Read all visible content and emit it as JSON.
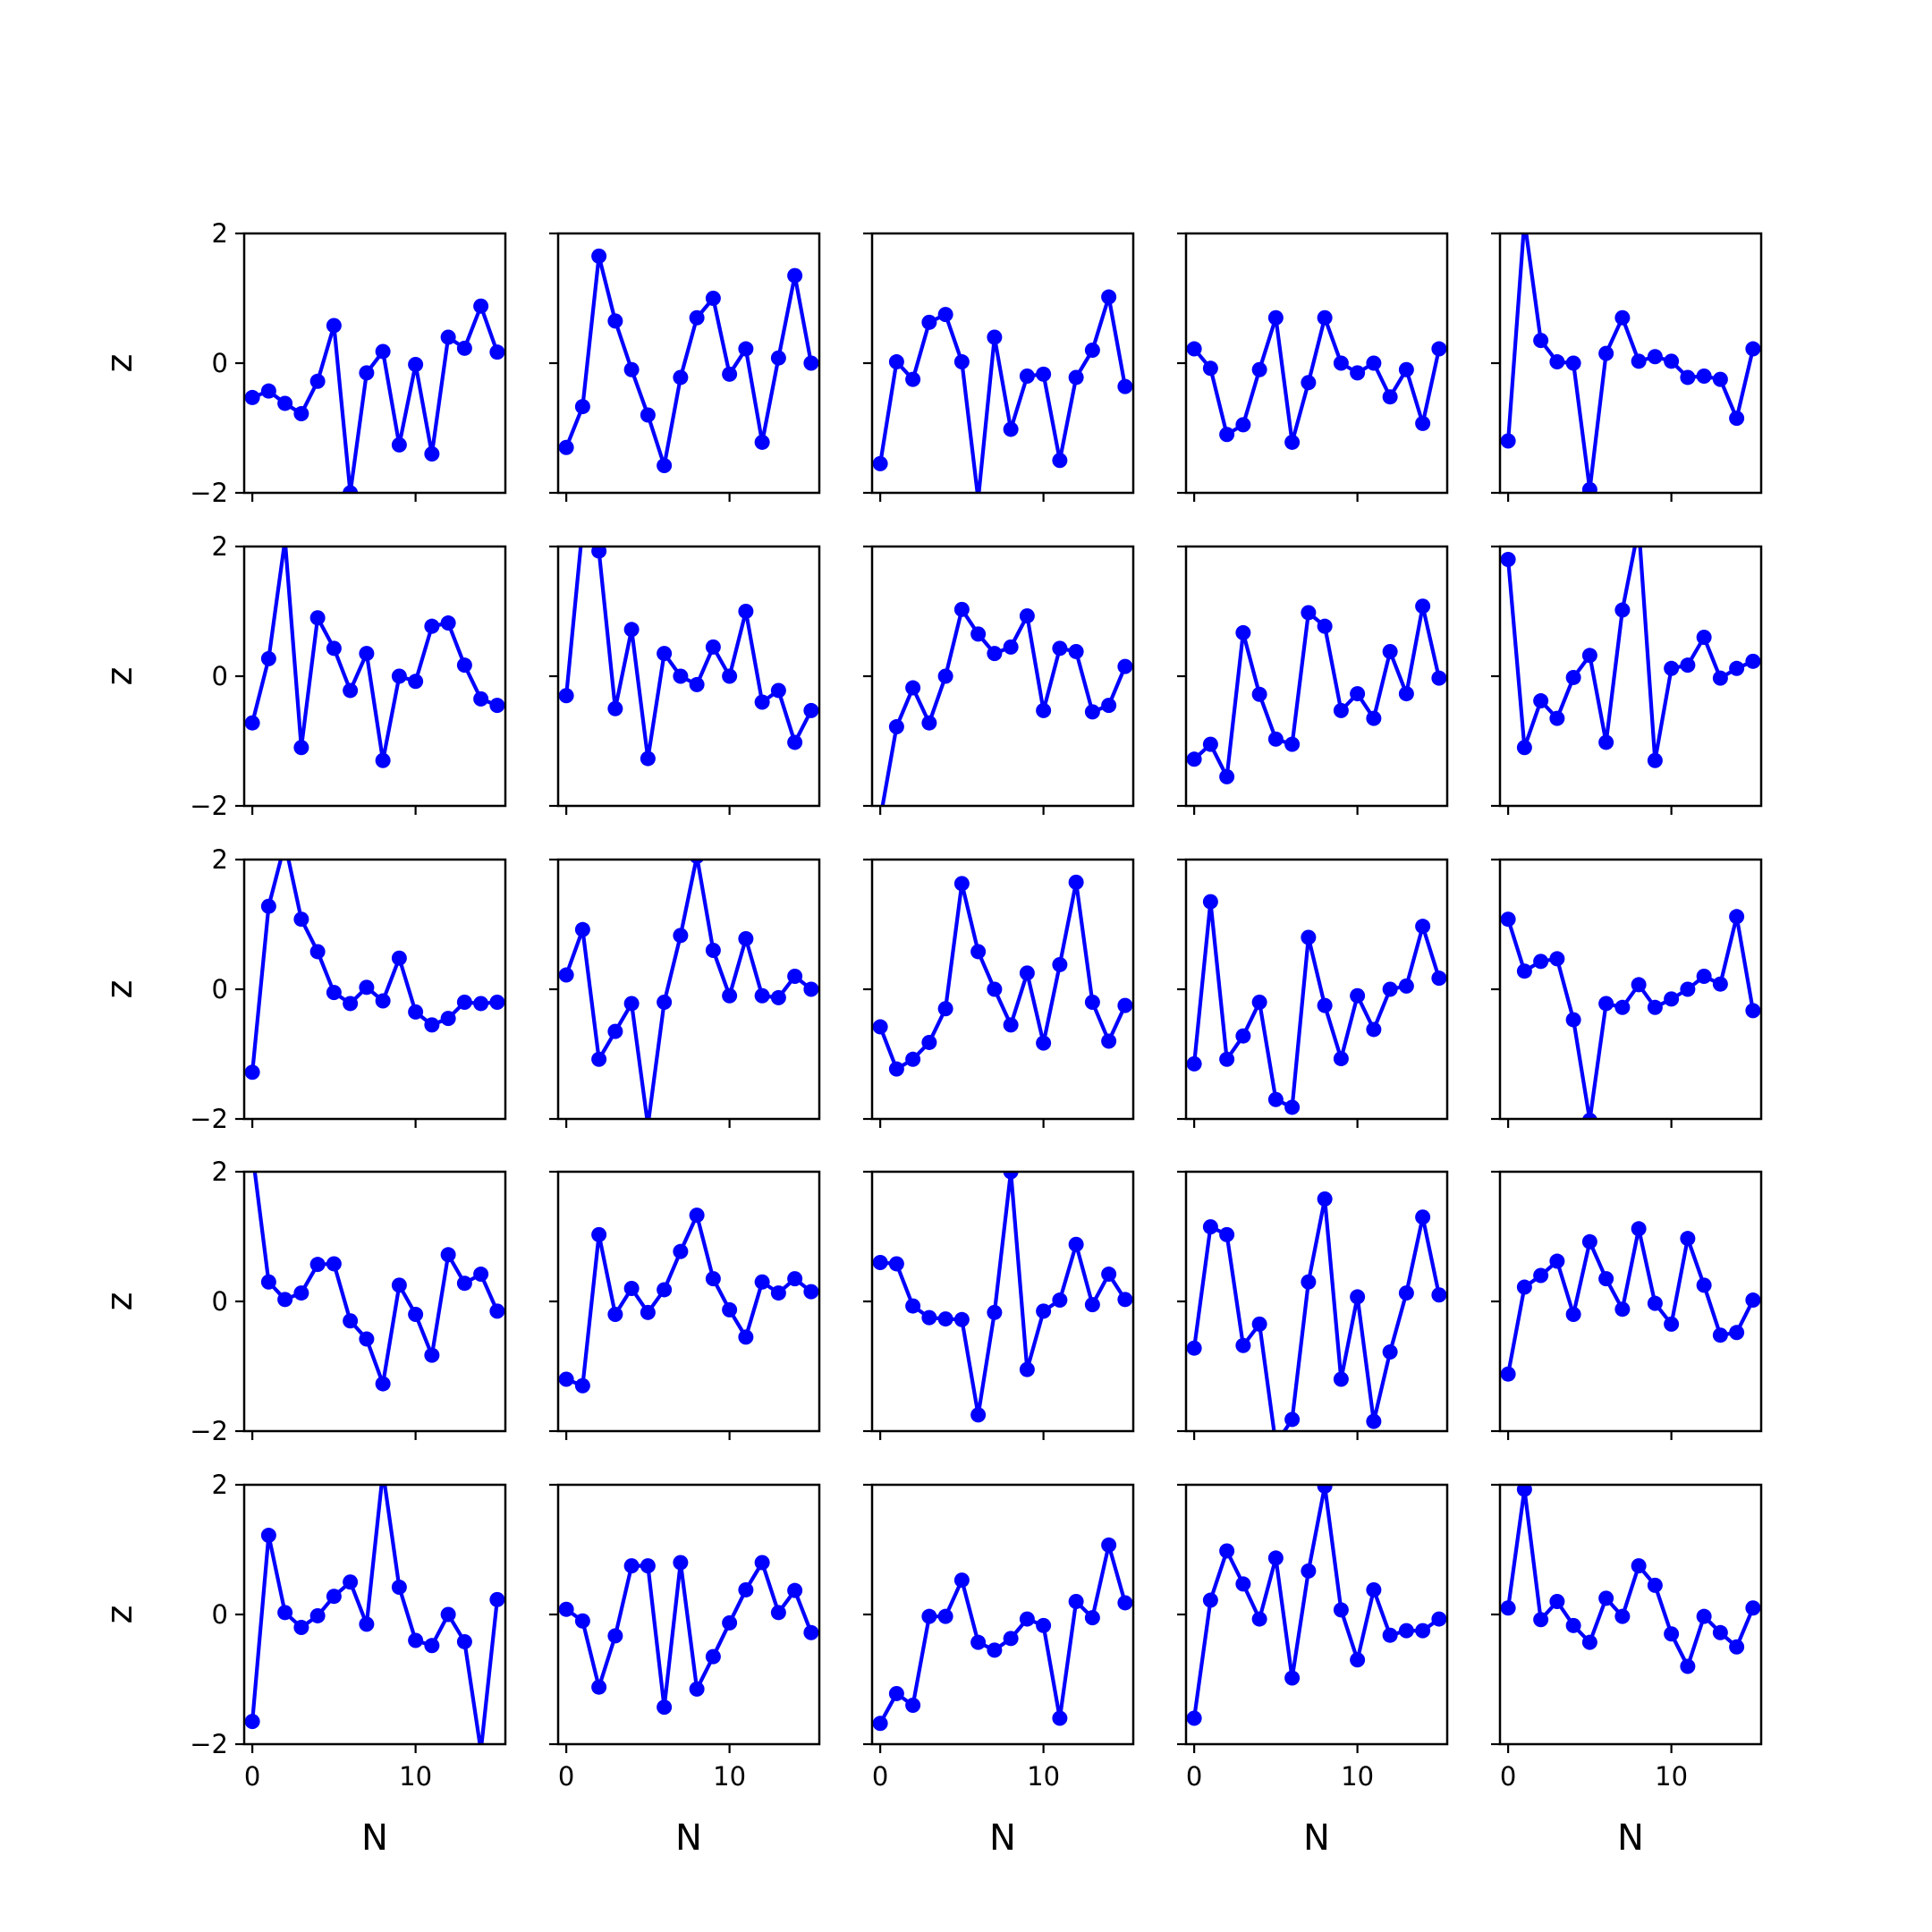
{
  "chart_data": {
    "type": "line",
    "layout": "5x5 small multiples, shared axes",
    "xlabel": "N",
    "ylabel": "z",
    "xlim": [
      -0.5,
      15.5
    ],
    "ylim": [
      -2,
      2
    ],
    "xticks": [
      0,
      10
    ],
    "yticks": [
      -2,
      0,
      2
    ],
    "x_tick_labels": [
      "0",
      "10"
    ],
    "y_tick_labels": [
      "−2",
      "0",
      "2"
    ],
    "grid": false,
    "line_color": "#0000ff",
    "marker": "circle",
    "x": [
      0,
      1,
      2,
      3,
      4,
      5,
      6,
      7,
      8,
      9,
      10,
      11,
      12,
      13,
      14,
      15
    ],
    "panels": [
      {
        "row": 1,
        "col": 1,
        "values": [
          -0.53,
          -0.43,
          -0.62,
          -0.78,
          -0.28,
          0.58,
          -2.0,
          -0.15,
          0.18,
          -1.26,
          -0.02,
          -1.4,
          0.4,
          0.23,
          0.88,
          0.17
        ]
      },
      {
        "row": 1,
        "col": 2,
        "values": [
          -1.3,
          -0.67,
          1.65,
          0.65,
          -0.1,
          -0.8,
          -1.58,
          -0.22,
          0.7,
          1.0,
          -0.17,
          0.22,
          -1.22,
          0.08,
          1.35,
          0.0
        ]
      },
      {
        "row": 1,
        "col": 3,
        "values": [
          -1.55,
          0.02,
          -0.25,
          0.63,
          0.75,
          0.02,
          -2.1,
          0.4,
          -1.02,
          -0.2,
          -0.17,
          -1.5,
          -0.22,
          0.2,
          1.02,
          -0.36
        ]
      },
      {
        "row": 1,
        "col": 4,
        "values": [
          0.22,
          -0.08,
          -1.1,
          -0.95,
          -0.1,
          0.7,
          -1.22,
          -0.3,
          0.7,
          0.0,
          -0.15,
          0.0,
          -0.52,
          -0.1,
          -0.93,
          0.22
        ]
      },
      {
        "row": 1,
        "col": 5,
        "values": [
          -1.2,
          2.2,
          0.35,
          0.02,
          0.0,
          -1.95,
          0.15,
          0.7,
          0.03,
          0.1,
          0.03,
          -0.22,
          -0.2,
          -0.25,
          -0.85,
          0.22
        ]
      },
      {
        "row": 2,
        "col": 1,
        "values": [
          -0.72,
          0.27,
          2.1,
          -1.1,
          0.9,
          0.43,
          -0.22,
          0.35,
          -1.3,
          0.0,
          -0.08,
          0.77,
          0.82,
          0.17,
          -0.35,
          -0.45
        ]
      },
      {
        "row": 2,
        "col": 2,
        "values": [
          -0.3,
          2.3,
          1.93,
          -0.5,
          0.72,
          -1.27,
          0.35,
          0.0,
          -0.13,
          0.45,
          0.0,
          1.0,
          -0.4,
          -0.22,
          -1.02,
          -0.53
        ]
      },
      {
        "row": 2,
        "col": 3,
        "values": [
          -2.2,
          -0.78,
          -0.18,
          -0.72,
          0.0,
          1.03,
          0.65,
          0.35,
          0.45,
          0.93,
          -0.53,
          0.43,
          0.38,
          -0.55,
          -0.45,
          0.15
        ]
      },
      {
        "row": 2,
        "col": 4,
        "values": [
          -1.28,
          -1.05,
          -1.55,
          0.67,
          -0.28,
          -0.97,
          -1.05,
          0.98,
          0.77,
          -0.53,
          -0.27,
          -0.65,
          0.38,
          -0.27,
          1.08,
          -0.03
        ]
      },
      {
        "row": 2,
        "col": 5,
        "values": [
          1.8,
          -1.1,
          -0.38,
          -0.65,
          -0.02,
          0.32,
          -1.02,
          1.02,
          2.3,
          -1.3,
          0.12,
          0.17,
          0.6,
          -0.03,
          0.12,
          0.23
        ]
      },
      {
        "row": 3,
        "col": 1,
        "values": [
          -1.28,
          1.28,
          2.25,
          1.08,
          0.58,
          -0.05,
          -0.22,
          0.03,
          -0.18,
          0.48,
          -0.35,
          -0.55,
          -0.45,
          -0.2,
          -0.22,
          -0.2
        ]
      },
      {
        "row": 3,
        "col": 2,
        "values": [
          0.22,
          0.92,
          -1.08,
          -0.65,
          -0.22,
          -2.1,
          -0.2,
          0.83,
          2.05,
          0.6,
          -0.1,
          0.78,
          -0.1,
          -0.13,
          0.2,
          0.0
        ]
      },
      {
        "row": 3,
        "col": 3,
        "values": [
          -0.58,
          -1.23,
          -1.08,
          -0.82,
          -0.3,
          1.63,
          0.58,
          0.0,
          -0.55,
          0.25,
          -0.83,
          0.38,
          1.65,
          -0.2,
          -0.8,
          -0.25
        ]
      },
      {
        "row": 3,
        "col": 4,
        "values": [
          -1.15,
          1.35,
          -1.08,
          -0.72,
          -0.2,
          -1.7,
          -1.82,
          0.8,
          -0.25,
          -1.07,
          -0.1,
          -0.62,
          0.0,
          0.05,
          0.97,
          0.17
        ]
      },
      {
        "row": 3,
        "col": 5,
        "values": [
          1.08,
          0.28,
          0.43,
          0.47,
          -0.47,
          -2.02,
          -0.22,
          -0.28,
          0.07,
          -0.28,
          -0.15,
          0.0,
          0.2,
          0.08,
          1.12,
          -0.33
        ]
      },
      {
        "row": 4,
        "col": 1,
        "values": [
          2.3,
          0.3,
          0.03,
          0.13,
          0.57,
          0.58,
          -0.3,
          -0.58,
          -1.27,
          0.25,
          -0.2,
          -0.83,
          0.72,
          0.28,
          0.42,
          -0.15
        ]
      },
      {
        "row": 4,
        "col": 2,
        "values": [
          -1.2,
          -1.3,
          1.03,
          -0.2,
          0.2,
          -0.17,
          0.18,
          0.77,
          1.33,
          0.35,
          -0.13,
          -0.55,
          0.3,
          0.13,
          0.35,
          0.15
        ]
      },
      {
        "row": 4,
        "col": 3,
        "values": [
          0.6,
          0.58,
          -0.07,
          -0.25,
          -0.27,
          -0.28,
          -1.75,
          -0.17,
          2.0,
          -1.05,
          -0.15,
          0.02,
          0.88,
          -0.05,
          0.42,
          0.03
        ]
      },
      {
        "row": 4,
        "col": 4,
        "values": [
          -0.72,
          1.15,
          1.03,
          -0.68,
          -0.35,
          -2.2,
          -1.82,
          0.3,
          1.58,
          -1.2,
          0.07,
          -1.85,
          -0.78,
          0.13,
          1.3,
          0.1
        ]
      },
      {
        "row": 4,
        "col": 5,
        "values": [
          -1.12,
          0.22,
          0.4,
          0.62,
          -0.2,
          0.92,
          0.35,
          -0.12,
          1.12,
          -0.03,
          -0.35,
          0.97,
          0.25,
          -0.52,
          -0.48,
          0.02
        ]
      },
      {
        "row": 5,
        "col": 1,
        "values": [
          -1.65,
          1.22,
          0.03,
          -0.2,
          -0.02,
          0.28,
          0.5,
          -0.15,
          2.2,
          0.42,
          -0.4,
          -0.48,
          0.0,
          -0.42,
          -2.1,
          0.23
        ]
      },
      {
        "row": 5,
        "col": 2,
        "values": [
          0.08,
          -0.1,
          -1.12,
          -0.33,
          0.75,
          0.75,
          -1.43,
          0.8,
          -1.15,
          -0.65,
          -0.13,
          0.38,
          0.8,
          0.03,
          0.37,
          -0.28
        ]
      },
      {
        "row": 5,
        "col": 3,
        "values": [
          -1.68,
          -1.22,
          -1.4,
          -0.03,
          -0.03,
          0.53,
          -0.43,
          -0.55,
          -0.37,
          -0.07,
          -0.17,
          -1.6,
          0.2,
          -0.05,
          1.07,
          0.18
        ]
      },
      {
        "row": 5,
        "col": 4,
        "values": [
          -1.6,
          0.22,
          0.98,
          0.47,
          -0.07,
          0.87,
          -0.98,
          0.67,
          1.98,
          0.07,
          -0.7,
          0.38,
          -0.32,
          -0.25,
          -0.25,
          -0.07
        ]
      },
      {
        "row": 5,
        "col": 5,
        "values": [
          0.1,
          1.93,
          -0.08,
          0.2,
          -0.17,
          -0.43,
          0.25,
          -0.03,
          0.75,
          0.45,
          -0.3,
          -0.8,
          -0.03,
          -0.28,
          -0.5,
          0.1
        ]
      }
    ]
  }
}
